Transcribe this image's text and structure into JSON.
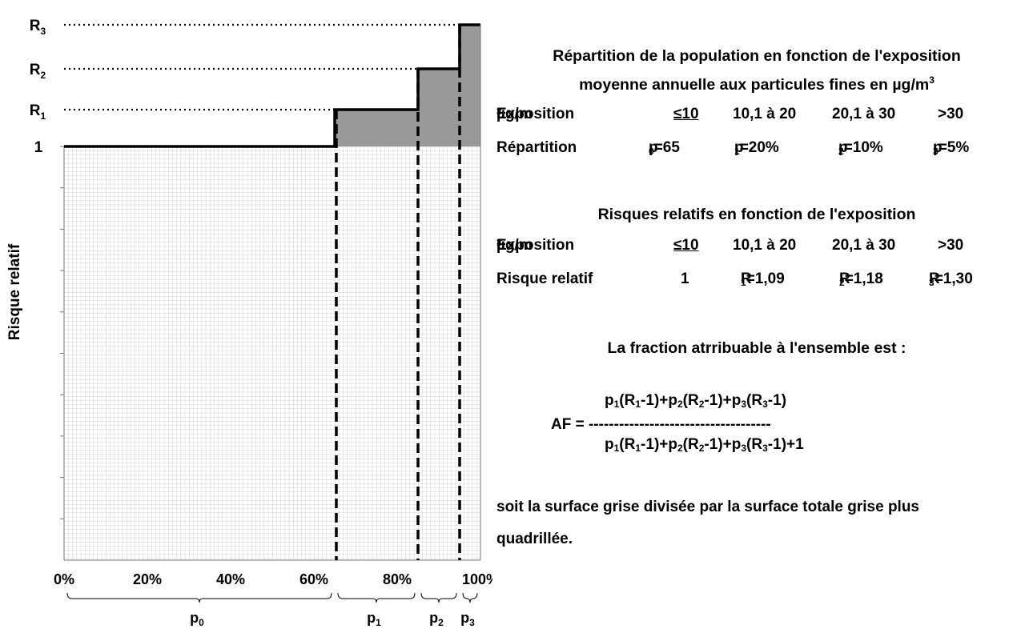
{
  "chart": {
    "ylabel": "Risque relatif",
    "y_levels": [
      "1",
      "R1",
      "R2",
      "R3"
    ],
    "xticks": [
      "0%",
      "20%",
      "40%",
      "60%",
      "80%",
      "100%"
    ],
    "xtick_values": [
      0,
      20,
      40,
      60,
      80,
      100
    ],
    "segments": [
      {
        "label": "p0",
        "from": 0,
        "to": 65,
        "level": 0
      },
      {
        "label": "p1",
        "from": 65,
        "to": 85,
        "level": 1
      },
      {
        "label": "p2",
        "from": 85,
        "to": 95,
        "level": 2
      },
      {
        "label": "p3",
        "from": 95,
        "to": 100,
        "level": 3
      }
    ],
    "colors": {
      "attributable": "#999999",
      "grid": "#bdbdbd",
      "line": "#000000"
    }
  },
  "panel": {
    "title1": "Répartition de la population en fonction de l'exposition",
    "title2_prefix": "moyenne annuelle aux particules fines en ",
    "unit": "µg/m",
    "unit_exp": "3",
    "exposition_label": "Exposition ",
    "exposition_unit": "µg/m",
    "exposition_values": [
      "≤10",
      "10,1 à 20",
      "20,1 à 30",
      ">30"
    ],
    "repartition_label": "Répartition",
    "repartition_values": [
      {
        "p": "p",
        "sub": "0",
        "val": "=65"
      },
      {
        "p": "p",
        "sub": "1",
        "val": "=20%"
      },
      {
        "p": "p",
        "sub": "2",
        "val": "=10%"
      },
      {
        "p": "p",
        "sub": "3",
        "val": "=5%"
      }
    ],
    "title_rr": "Risques relatifs en fonction de l'exposition",
    "risque_label": "Risque relatif",
    "risque_values": [
      {
        "r": "1",
        "sub": "",
        "val": ""
      },
      {
        "r": "R",
        "sub": "1",
        "val": "=1,09"
      },
      {
        "r": "R",
        "sub": "2",
        "val": "=1,18"
      },
      {
        "r": "R",
        "sub": "3",
        "val": "=1,30"
      }
    ],
    "fraction_title": "La fraction atrribuable à l'ensemble est :",
    "af_label": "AF = ",
    "af_dashes": "------------------------------------",
    "numerator": "p1(R1-1)+p2(R2-1)+p3(R3-1)",
    "denominator": "p1(R1-1)+p2(R2-1)+p3(R3-1)+1",
    "conclusion1": "soit la surface grise divisée par la surface totale grise plus",
    "conclusion2": "quadrillée."
  }
}
